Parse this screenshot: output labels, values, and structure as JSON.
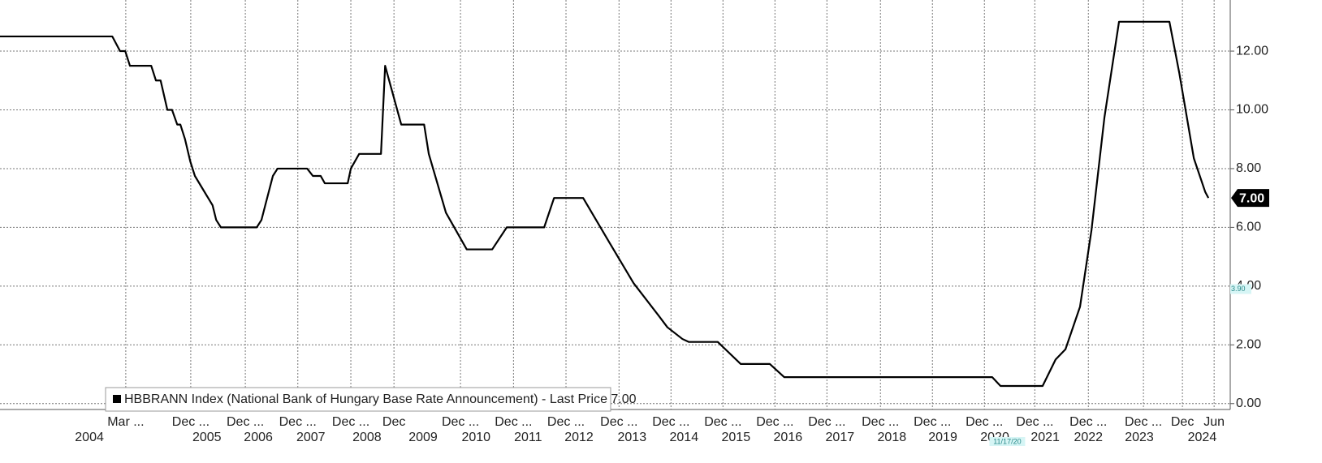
{
  "chart_data": {
    "type": "line",
    "xlim": [
      2001.5,
      2025.17
    ],
    "ylim": [
      -0.2,
      13.74
    ],
    "grid": true,
    "yticks": [
      {
        "value": 0,
        "label": "0.00"
      },
      {
        "value": 2,
        "label": "2.00"
      },
      {
        "value": 4,
        "label": "4.00"
      },
      {
        "value": 6,
        "label": "6.00"
      },
      {
        "value": 8,
        "label": "8.00"
      },
      {
        "value": 10,
        "label": "10.00"
      },
      {
        "value": 12,
        "label": "12.00"
      }
    ],
    "xticks": [
      {
        "value": 2003.92,
        "label": "Mar ..."
      },
      {
        "value": 2005.17,
        "label": "Dec ..."
      },
      {
        "value": 2006.22,
        "label": "Dec ..."
      },
      {
        "value": 2007.23,
        "label": "Dec ..."
      },
      {
        "value": 2008.25,
        "label": "Dec ..."
      },
      {
        "value": 2009.08,
        "label": "Dec"
      },
      {
        "value": 2010.36,
        "label": "Dec ..."
      },
      {
        "value": 2011.38,
        "label": "Dec ..."
      },
      {
        "value": 2012.39,
        "label": "Dec ..."
      },
      {
        "value": 2013.41,
        "label": "Dec ..."
      },
      {
        "value": 2014.41,
        "label": "Dec ..."
      },
      {
        "value": 2015.41,
        "label": "Dec ..."
      },
      {
        "value": 2016.41,
        "label": "Dec ..."
      },
      {
        "value": 2017.41,
        "label": "Dec ..."
      },
      {
        "value": 2018.44,
        "label": "Dec ..."
      },
      {
        "value": 2019.44,
        "label": "Dec ..."
      },
      {
        "value": 2020.44,
        "label": "Dec ..."
      },
      {
        "value": 2021.41,
        "label": "Dec ..."
      },
      {
        "value": 2022.44,
        "label": "Dec ..."
      },
      {
        "value": 2023.5,
        "label": "Dec ..."
      },
      {
        "value": 2024.25,
        "label": "Dec"
      },
      {
        "value": 2024.86,
        "label": "Jun"
      }
    ],
    "xticks_years": [
      {
        "value": 2003.22,
        "label": "2004"
      },
      {
        "value": 2005.48,
        "label": "2005"
      },
      {
        "value": 2006.47,
        "label": "2006"
      },
      {
        "value": 2007.48,
        "label": "2007"
      },
      {
        "value": 2008.56,
        "label": "2008"
      },
      {
        "value": 2009.64,
        "label": "2009"
      },
      {
        "value": 2010.66,
        "label": "2010"
      },
      {
        "value": 2011.66,
        "label": "2011"
      },
      {
        "value": 2012.64,
        "label": "2012"
      },
      {
        "value": 2013.66,
        "label": "2013"
      },
      {
        "value": 2014.66,
        "label": "2014"
      },
      {
        "value": 2015.66,
        "label": "2015"
      },
      {
        "value": 2016.66,
        "label": "2016"
      },
      {
        "value": 2017.66,
        "label": "2017"
      },
      {
        "value": 2018.66,
        "label": "2018"
      },
      {
        "value": 2019.64,
        "label": "2019"
      },
      {
        "value": 2020.64,
        "label": "2020"
      },
      {
        "value": 2021.61,
        "label": "2021"
      },
      {
        "value": 2022.44,
        "label": "2022"
      },
      {
        "value": 2023.42,
        "label": "2023"
      },
      {
        "value": 2024.63,
        "label": "2024"
      }
    ],
    "series": [
      {
        "name": "HBBRANN Index (National Bank of Hungary Base Rate Announcement) - Last Price 7.00",
        "color": "#000000",
        "x": [
          2001.5,
          2003.66,
          2003.81,
          2003.91,
          2004.0,
          2004.41,
          2004.5,
          2004.59,
          2004.72,
          2004.81,
          2004.91,
          2004.97,
          2005.06,
          2005.16,
          2005.25,
          2005.59,
          2005.66,
          2005.75,
          2006.44,
          2006.53,
          2006.75,
          2006.84,
          2007.41,
          2007.52,
          2007.67,
          2007.75,
          2008.19,
          2008.25,
          2008.41,
          2008.83,
          2008.91,
          2009.22,
          2009.66,
          2009.75,
          2010.08,
          2010.48,
          2010.97,
          2011.25,
          2011.97,
          2012.16,
          2012.72,
          2013.22,
          2013.69,
          2014.17,
          2014.34,
          2014.63,
          2014.75,
          2015.31,
          2015.75,
          2016.31,
          2016.59,
          2020.59,
          2020.75,
          2021.56,
          2021.81,
          2022.0,
          2022.28,
          2022.5,
          2022.75,
          2023.03,
          2024.0,
          2024.19,
          2024.47,
          2024.69,
          2024.75
        ],
        "values": [
          12.5,
          12.5,
          12.0,
          12.0,
          11.5,
          11.5,
          11.0,
          11.0,
          10.0,
          10.0,
          9.5,
          9.5,
          9.0,
          8.25,
          7.75,
          6.75,
          6.25,
          6.0,
          6.0,
          6.25,
          7.75,
          8.0,
          8.0,
          7.75,
          7.75,
          7.5,
          7.5,
          8.0,
          8.5,
          8.5,
          11.5,
          9.5,
          9.5,
          8.5,
          6.5,
          5.25,
          5.25,
          6.0,
          6.0,
          7.0,
          7.0,
          5.5,
          4.1,
          3.0,
          2.6,
          2.2,
          2.1,
          2.1,
          1.35,
          1.35,
          0.9,
          0.9,
          0.6,
          0.6,
          1.5,
          1.85,
          3.3,
          5.9,
          9.75,
          13.0,
          13.0,
          11.25,
          8.35,
          7.2,
          7.0
        ]
      }
    ],
    "last_price": {
      "value": 7,
      "label": "7.00"
    },
    "annotations": [
      {
        "value": 3.9,
        "label": "3.90"
      }
    ],
    "x_annotations": [
      {
        "value": 2020.88,
        "label": "11/17/20"
      }
    ]
  }
}
